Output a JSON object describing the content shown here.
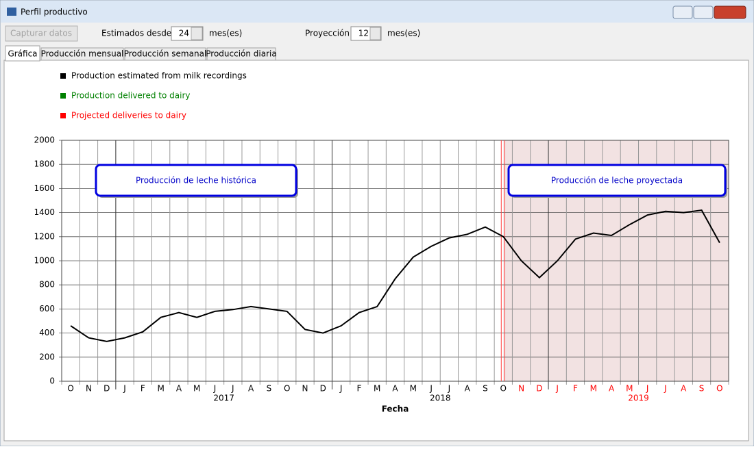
{
  "window": {
    "title": "Perfil productivo"
  },
  "toolbar": {
    "capture_button": "Capturar datos",
    "estimated_label": "Estimados desde",
    "estimated_value": 24,
    "estimated_unit": "mes(es)",
    "projection_label": "Proyección",
    "projection_value": 12,
    "projection_unit": "mes(es)"
  },
  "tabs": [
    "Gráfica",
    "Producción mensual",
    "Producción semanal",
    "Producción diaria"
  ],
  "chart_data": {
    "type": "line",
    "x_label": "Fecha",
    "categories": [
      "O",
      "N",
      "D",
      "J",
      "F",
      "M",
      "A",
      "M",
      "J",
      "J",
      "A",
      "S",
      "O",
      "N",
      "D",
      "J",
      "F",
      "M",
      "A",
      "M",
      "J",
      "J",
      "A",
      "S",
      "O",
      "N",
      "D",
      "J",
      "F",
      "M",
      "A",
      "M",
      "J",
      "J",
      "A",
      "S",
      "O"
    ],
    "years": [
      "2017",
      "2018",
      "2019"
    ],
    "series": [
      {
        "name": "Production estimated from milk recordings",
        "color": "#000000",
        "values": [
          460,
          360,
          330,
          360,
          410,
          530,
          570,
          530,
          580,
          595,
          620,
          600,
          580,
          430,
          400,
          460,
          570,
          620,
          850,
          1030,
          1120,
          1190,
          1220,
          1280,
          1200,
          1000,
          860,
          1000,
          1180,
          1230,
          1210,
          1300,
          1380,
          1410,
          1400,
          1420,
          1150
        ]
      }
    ],
    "other_legend_entries": [
      {
        "name": "Production delivered to dairy",
        "color": "#008000"
      },
      {
        "name": "Projected deliveries to dairy",
        "color": "#ff0000"
      }
    ],
    "ylim": [
      0,
      2000
    ],
    "yticks": [
      0,
      200,
      400,
      600,
      800,
      1000,
      1200,
      1400,
      1600,
      1800,
      2000
    ],
    "grid": true,
    "projection": {
      "start_category": 24,
      "shade_color": "#f2e2e2",
      "line_color": "#ff4040",
      "label_color": "#ff0000"
    },
    "annotations": [
      "Producción de leche histórica",
      "Producción de leche proyectada"
    ]
  }
}
